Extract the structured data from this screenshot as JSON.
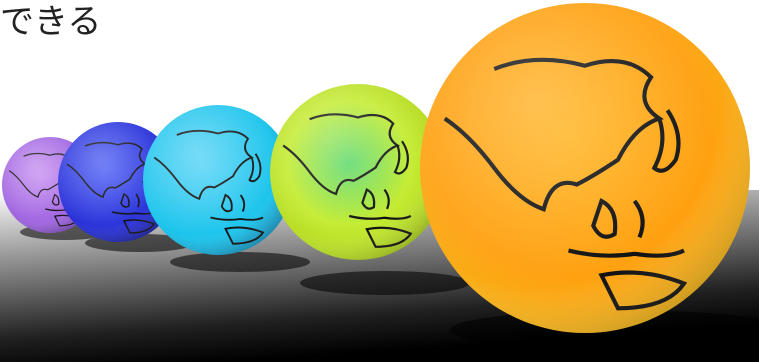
{
  "caption": "できる"
}
